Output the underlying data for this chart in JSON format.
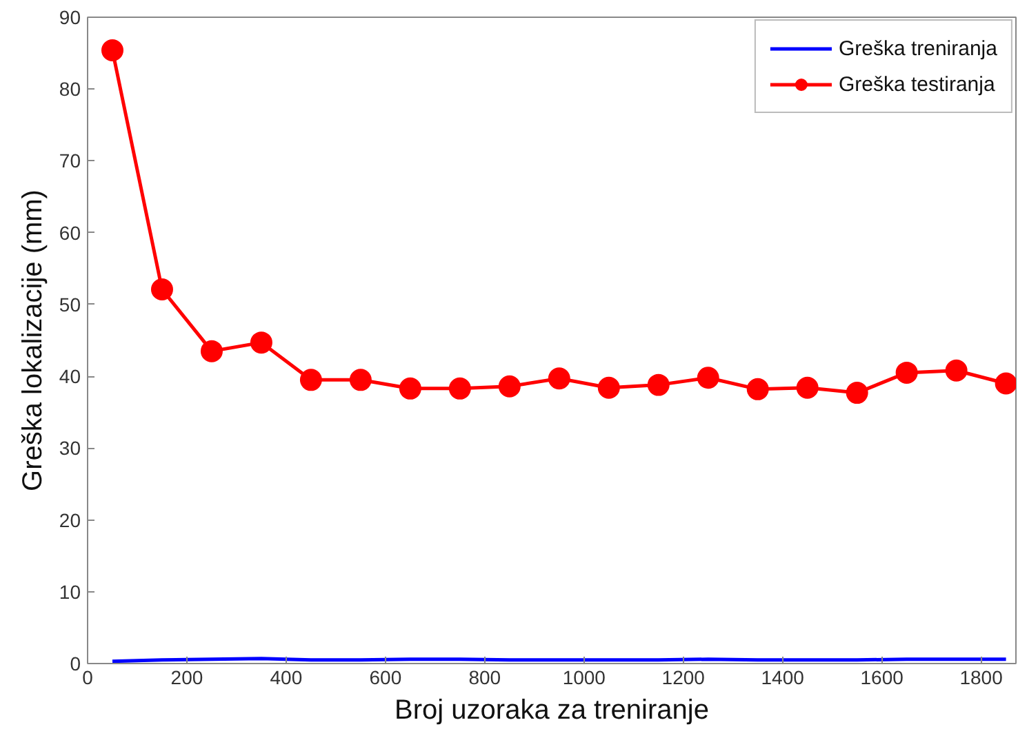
{
  "chart_data": {
    "type": "line",
    "xlabel": "Broj uzoraka za treniranje",
    "ylabel": "Greška lokalizacije (mm)",
    "x": [
      50,
      150,
      250,
      350,
      450,
      550,
      650,
      750,
      850,
      950,
      1050,
      1150,
      1250,
      1350,
      1450,
      1550,
      1650,
      1750,
      1850
    ],
    "xlim": [
      0,
      1870
    ],
    "ylim": [
      0,
      90
    ],
    "xticks": [
      0,
      200,
      400,
      600,
      800,
      1000,
      1200,
      1400,
      1600,
      1800
    ],
    "yticks": [
      0,
      10,
      20,
      30,
      40,
      50,
      60,
      70,
      80,
      90
    ],
    "grid": false,
    "legend": "top right",
    "series": [
      {
        "name": "Greška treniranja",
        "color": "#0000ff",
        "marker": "none",
        "values": [
          0.3,
          0.5,
          0.6,
          0.7,
          0.5,
          0.5,
          0.6,
          0.6,
          0.5,
          0.5,
          0.5,
          0.5,
          0.6,
          0.5,
          0.5,
          0.5,
          0.6,
          0.6,
          0.6
        ]
      },
      {
        "name": "Greška testiranja",
        "color": "#ff0000",
        "marker": "circle",
        "values": [
          85.4,
          52.1,
          43.5,
          44.7,
          39.5,
          39.5,
          38.3,
          38.3,
          38.6,
          39.7,
          38.4,
          38.8,
          39.8,
          38.2,
          38.4,
          37.7,
          40.5,
          40.8,
          39.0
        ]
      }
    ]
  }
}
